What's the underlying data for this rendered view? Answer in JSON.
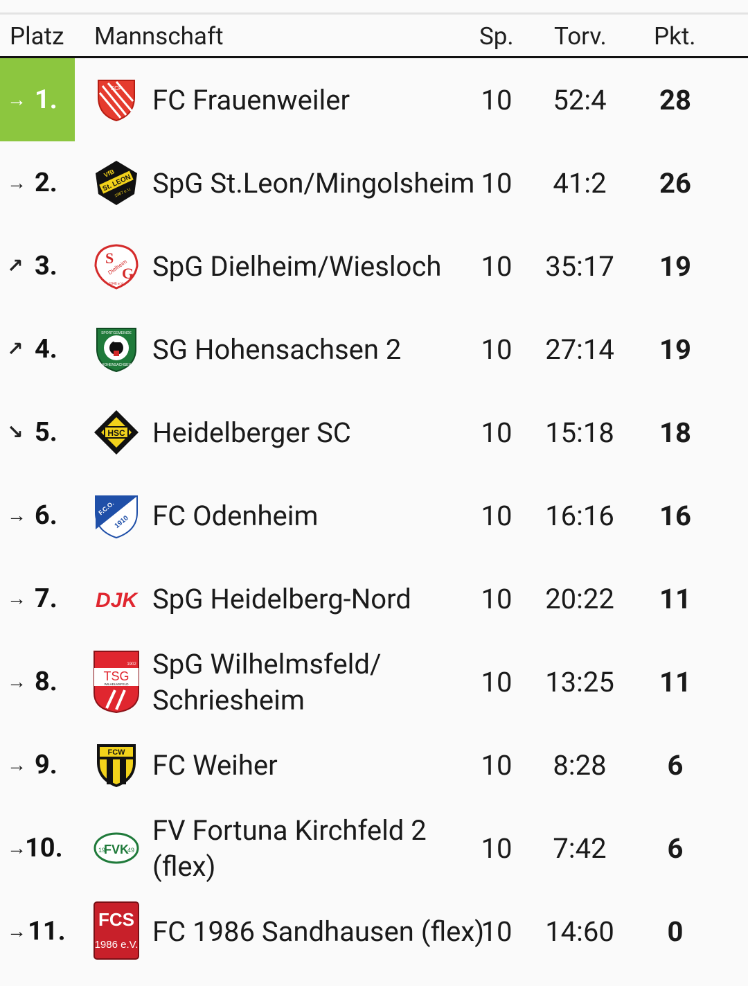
{
  "header": {
    "platz": "Platz",
    "mannschaft": "Mannschaft",
    "sp": "Sp.",
    "torv": "Torv.",
    "pkt": "Pkt."
  },
  "rows": [
    {
      "trend": "→",
      "trend_icon": "arrow-right",
      "rank": "1.",
      "team": "FC Frauenweiler",
      "sp": "10",
      "torv": "52:4",
      "pkt": "28",
      "highlight": true
    },
    {
      "trend": "→",
      "trend_icon": "arrow-right",
      "rank": "2.",
      "team": "SpG St.Leon/Mingolsheim",
      "sp": "10",
      "torv": "41:2",
      "pkt": "26"
    },
    {
      "trend": "↗",
      "trend_icon": "arrow-up-right",
      "rank": "3.",
      "team": "SpG Dielheim/Wiesloch",
      "sp": "10",
      "torv": "35:17",
      "pkt": "19"
    },
    {
      "trend": "↗",
      "trend_icon": "arrow-up-right",
      "rank": "4.",
      "team": "SG Hohensachsen 2",
      "sp": "10",
      "torv": "27:14",
      "pkt": "19"
    },
    {
      "trend": "↘",
      "trend_icon": "arrow-down-right",
      "rank": "5.",
      "team": "Heidelberger SC",
      "sp": "10",
      "torv": "15:18",
      "pkt": "18"
    },
    {
      "trend": "→",
      "trend_icon": "arrow-right",
      "rank": "6.",
      "team": "FC Odenheim",
      "sp": "10",
      "torv": "16:16",
      "pkt": "16"
    },
    {
      "trend": "→",
      "trend_icon": "arrow-right",
      "rank": "7.",
      "team": "SpG Heidelberg-Nord",
      "sp": "10",
      "torv": "20:22",
      "pkt": "11"
    },
    {
      "trend": "→",
      "trend_icon": "arrow-right",
      "rank": "8.",
      "team_line1": "SpG Wilhelmsfeld/",
      "team_line2": "Schriesheim",
      "sp": "10",
      "torv": "13:25",
      "pkt": "11"
    },
    {
      "trend": "→",
      "trend_icon": "arrow-right",
      "rank": "9.",
      "team": "FC Weiher",
      "sp": "10",
      "torv": "8:28",
      "pkt": "6"
    },
    {
      "trend": "→",
      "trend_icon": "arrow-right",
      "rank": "10.",
      "team_line1": "FV Fortuna Kirchfeld 2",
      "team_line2": "(flex)",
      "sp": "10",
      "torv": "7:42",
      "pkt": "6"
    },
    {
      "trend": "→",
      "trend_icon": "arrow-right",
      "rank": "11.",
      "team": "FC 1986 Sandhausen (flex)",
      "sp": "10",
      "torv": "14:60",
      "pkt": "0"
    }
  ],
  "logos": {
    "frauenweiler": {
      "text": "FCF"
    },
    "stleon": {
      "text_top": "VfB",
      "text_mid": "St. LEON",
      "text_bot": "1967 e.V."
    },
    "dielheim": {
      "text_s": "S",
      "text_g": "G",
      "text_mid": "Dielheim",
      "text_bot": "1946 e.V."
    },
    "hohensachsen": {
      "text_top": "SPORTGEMEINDE",
      "text_bot": "HOHENSACHSEN"
    },
    "hsc": {
      "text": "HSC"
    },
    "odenheim": {
      "text_top": "F.C.O.",
      "text_bot": "1910"
    },
    "djk": {
      "text": "DJK"
    },
    "tsg": {
      "text_top": "1902",
      "text": "TSG",
      "text_bot": "WILHELMSFELD"
    },
    "fcw": {
      "text": "FCW"
    },
    "fortuna": {
      "text_l": "19",
      "text": "FVK",
      "text_r": "49"
    },
    "sandhausen": {
      "text": "FCS",
      "text_bot": "1986 e.V."
    }
  },
  "colors": {
    "leader_green": "#8cc63f",
    "header_rule": "#111111"
  }
}
